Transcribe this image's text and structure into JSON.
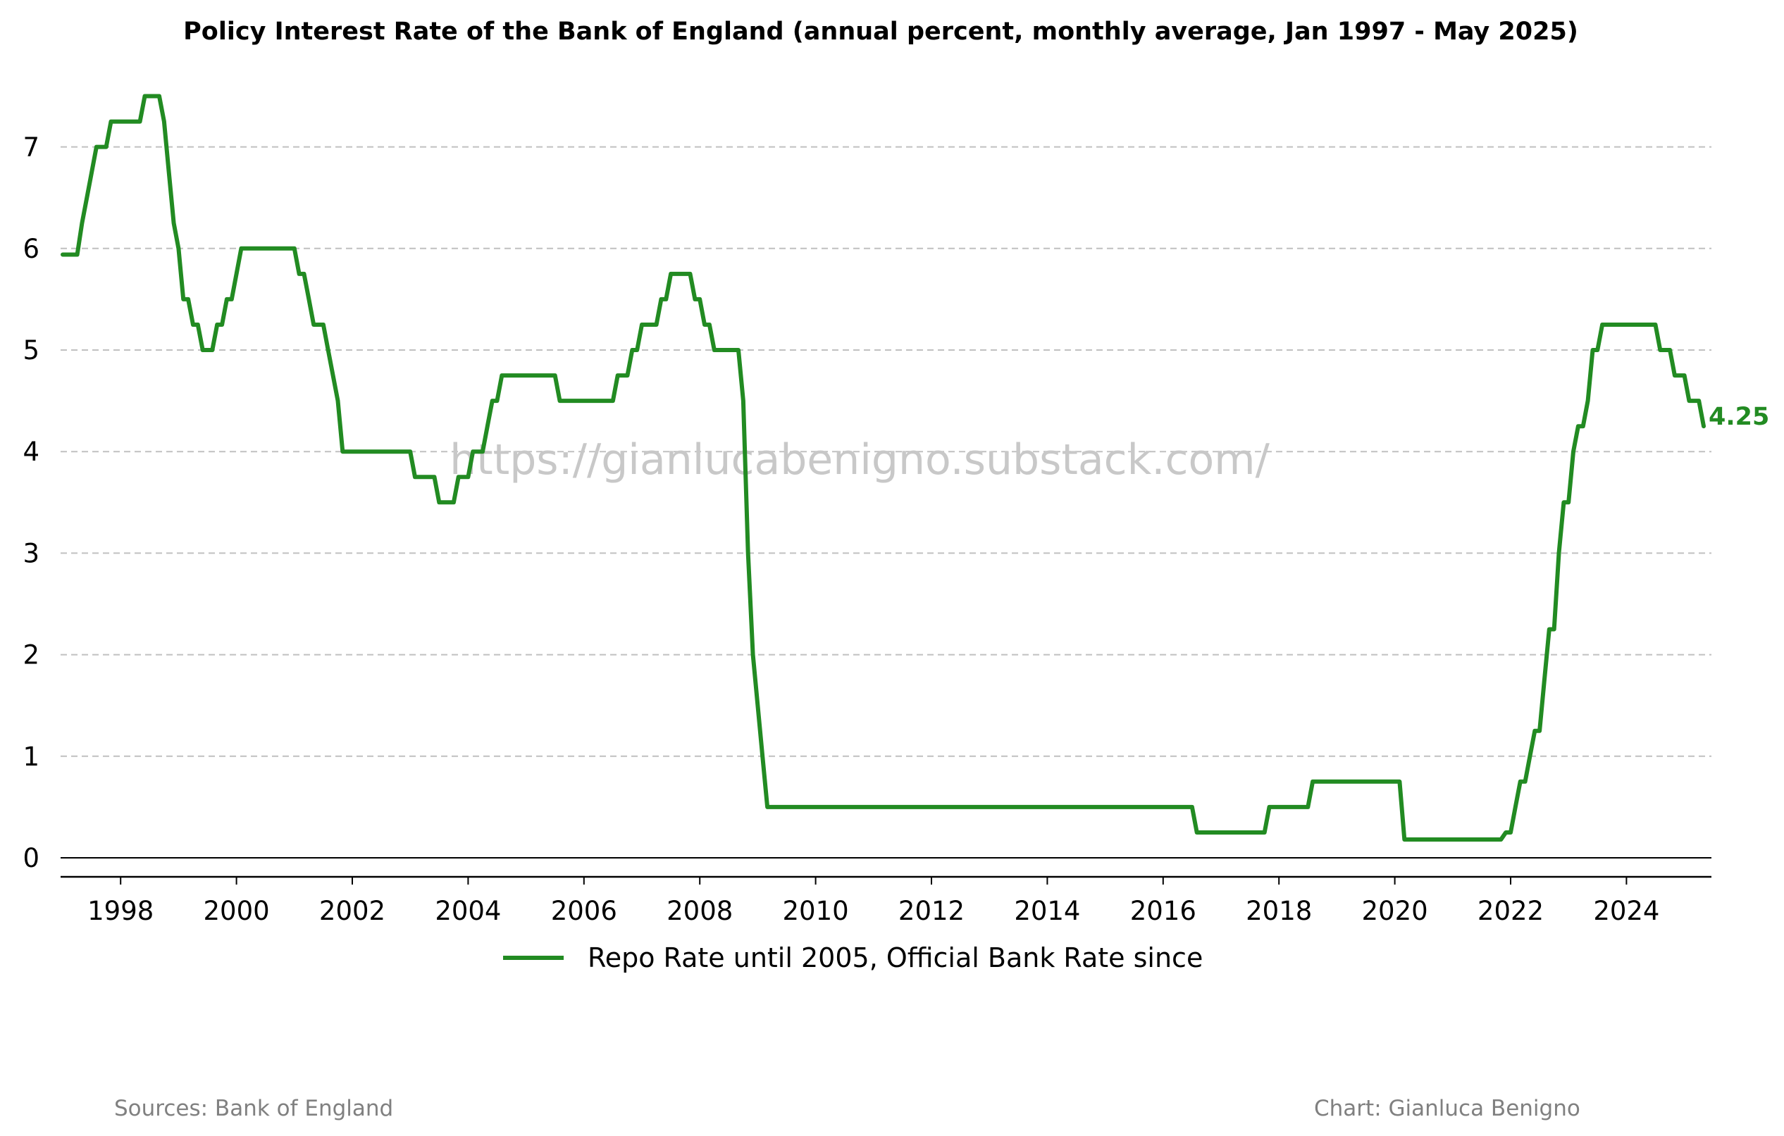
{
  "title": "Policy Interest Rate of the Bank of England (annual percent, monthly average, Jan 1997 - May 2025)",
  "watermark": "https://gianlucabenigno.substack.com/",
  "sources": "Sources: Bank of England",
  "credit": "Chart: Gianluca Benigno",
  "last_value_label": "4.25",
  "colors": {
    "series": "#228b22",
    "grid": "#c0c0c0",
    "footer": "#808080",
    "watermark": "#c8c8c8"
  },
  "chart_data": {
    "type": "line",
    "title": "Policy Interest Rate of the Bank of England (annual percent, monthly average, Jan 1997 - May 2025)",
    "xlabel": "",
    "ylabel": "",
    "xlim": [
      "1997-01",
      "2025-06"
    ],
    "ylim": [
      -0.2,
      7.6
    ],
    "x_ticks": [
      "1998",
      "2000",
      "2002",
      "2004",
      "2006",
      "2008",
      "2010",
      "2012",
      "2014",
      "2016",
      "2018",
      "2020",
      "2022",
      "2024"
    ],
    "y_ticks": [
      "0",
      "1",
      "2",
      "3",
      "4",
      "5",
      "6",
      "7"
    ],
    "grid": "horizontal dashed",
    "legend_position": "bottom-center",
    "series": [
      {
        "name": "Repo Rate until 2005, Official Bank Rate since",
        "points": [
          [
            "1997-01",
            5.94
          ],
          [
            "1997-04",
            5.94
          ],
          [
            "1997-05",
            6.25
          ],
          [
            "1997-06",
            6.5
          ],
          [
            "1997-07",
            6.75
          ],
          [
            "1997-08",
            7.0
          ],
          [
            "1997-10",
            7.0
          ],
          [
            "1997-11",
            7.25
          ],
          [
            "1998-05",
            7.25
          ],
          [
            "1998-06",
            7.5
          ],
          [
            "1998-09",
            7.5
          ],
          [
            "1998-10",
            7.25
          ],
          [
            "1998-11",
            6.75
          ],
          [
            "1998-12",
            6.25
          ],
          [
            "1999-01",
            6.0
          ],
          [
            "1999-02",
            5.5
          ],
          [
            "1999-03",
            5.5
          ],
          [
            "1999-04",
            5.25
          ],
          [
            "1999-05",
            5.25
          ],
          [
            "1999-06",
            5.0
          ],
          [
            "1999-08",
            5.0
          ],
          [
            "1999-09",
            5.25
          ],
          [
            "1999-10",
            5.25
          ],
          [
            "1999-11",
            5.5
          ],
          [
            "1999-12",
            5.5
          ],
          [
            "2000-01",
            5.75
          ],
          [
            "2000-02",
            6.0
          ],
          [
            "2001-01",
            6.0
          ],
          [
            "2001-02",
            5.75
          ],
          [
            "2001-03",
            5.75
          ],
          [
            "2001-04",
            5.5
          ],
          [
            "2001-05",
            5.25
          ],
          [
            "2001-07",
            5.25
          ],
          [
            "2001-08",
            5.0
          ],
          [
            "2001-09",
            4.75
          ],
          [
            "2001-10",
            4.5
          ],
          [
            "2001-11",
            4.0
          ],
          [
            "2003-01",
            4.0
          ],
          [
            "2003-02",
            3.75
          ],
          [
            "2003-06",
            3.75
          ],
          [
            "2003-07",
            3.5
          ],
          [
            "2003-10",
            3.5
          ],
          [
            "2003-11",
            3.75
          ],
          [
            "2004-01",
            3.75
          ],
          [
            "2004-02",
            4.0
          ],
          [
            "2004-04",
            4.0
          ],
          [
            "2004-05",
            4.25
          ],
          [
            "2004-06",
            4.5
          ],
          [
            "2004-07",
            4.5
          ],
          [
            "2004-08",
            4.75
          ],
          [
            "2005-07",
            4.75
          ],
          [
            "2005-08",
            4.5
          ],
          [
            "2006-07",
            4.5
          ],
          [
            "2006-08",
            4.75
          ],
          [
            "2006-10",
            4.75
          ],
          [
            "2006-11",
            5.0
          ],
          [
            "2006-12",
            5.0
          ],
          [
            "2007-01",
            5.25
          ],
          [
            "2007-04",
            5.25
          ],
          [
            "2007-05",
            5.5
          ],
          [
            "2007-06",
            5.5
          ],
          [
            "2007-07",
            5.75
          ],
          [
            "2007-11",
            5.75
          ],
          [
            "2007-12",
            5.5
          ],
          [
            "2008-01",
            5.5
          ],
          [
            "2008-02",
            5.25
          ],
          [
            "2008-03",
            5.25
          ],
          [
            "2008-04",
            5.0
          ],
          [
            "2008-09",
            5.0
          ],
          [
            "2008-10",
            4.5
          ],
          [
            "2008-11",
            3.0
          ],
          [
            "2008-12",
            2.0
          ],
          [
            "2009-01",
            1.5
          ],
          [
            "2009-02",
            1.0
          ],
          [
            "2009-03",
            0.5
          ],
          [
            "2016-07",
            0.5
          ],
          [
            "2016-08",
            0.25
          ],
          [
            "2017-10",
            0.25
          ],
          [
            "2017-11",
            0.5
          ],
          [
            "2018-07",
            0.5
          ],
          [
            "2018-08",
            0.75
          ],
          [
            "2020-02",
            0.75
          ],
          [
            "2020-03",
            0.18
          ],
          [
            "2021-11",
            0.18
          ],
          [
            "2021-12",
            0.25
          ],
          [
            "2022-01",
            0.25
          ],
          [
            "2022-02",
            0.5
          ],
          [
            "2022-03",
            0.75
          ],
          [
            "2022-04",
            0.75
          ],
          [
            "2022-05",
            1.0
          ],
          [
            "2022-06",
            1.25
          ],
          [
            "2022-07",
            1.25
          ],
          [
            "2022-08",
            1.75
          ],
          [
            "2022-09",
            2.25
          ],
          [
            "2022-10",
            2.25
          ],
          [
            "2022-11",
            3.0
          ],
          [
            "2022-12",
            3.5
          ],
          [
            "2023-01",
            3.5
          ],
          [
            "2023-02",
            4.0
          ],
          [
            "2023-03",
            4.25
          ],
          [
            "2023-04",
            4.25
          ],
          [
            "2023-05",
            4.5
          ],
          [
            "2023-06",
            5.0
          ],
          [
            "2023-07",
            5.0
          ],
          [
            "2023-08",
            5.25
          ],
          [
            "2024-07",
            5.25
          ],
          [
            "2024-08",
            5.0
          ],
          [
            "2024-10",
            5.0
          ],
          [
            "2024-11",
            4.75
          ],
          [
            "2025-01",
            4.75
          ],
          [
            "2025-02",
            4.5
          ],
          [
            "2025-04",
            4.5
          ],
          [
            "2025-05",
            4.25
          ]
        ]
      }
    ]
  }
}
